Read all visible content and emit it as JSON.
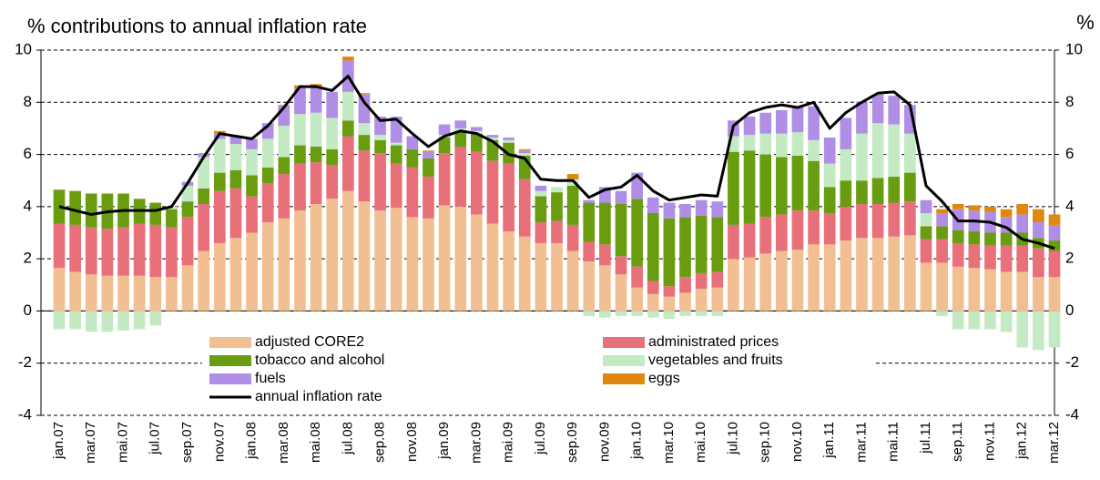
{
  "chart_data": {
    "type": "stacked_bar",
    "title": "% contributions to annual inflation rate",
    "y2_label": "%",
    "categories": [
      "jan.07",
      null,
      "mar.07",
      null,
      "mai.07",
      null,
      "jul.07",
      null,
      "sep.07",
      null,
      "nov.07",
      null,
      "jan.08",
      null,
      "mar.08",
      null,
      "mai.08",
      null,
      "jul.08",
      null,
      "sep.08",
      null,
      "nov.08",
      null,
      "jan.09",
      null,
      "mar.09",
      null,
      "mai.09",
      null,
      "jul.09",
      null,
      "sep.09",
      null,
      "nov.09",
      null,
      "jan.10",
      null,
      "mar.10",
      null,
      "mai.10",
      null,
      "jul.10",
      null,
      "sep.10",
      null,
      "nov.10",
      null,
      "jan.11",
      null,
      "mar.11",
      null,
      "mai.11",
      null,
      "jul.11",
      null,
      "sep.11",
      null,
      "nov.11",
      null,
      "jan.12",
      null,
      "mar.12"
    ],
    "series": [
      {
        "name": "adjusted CORE2",
        "color": "#f2bf93",
        "values": [
          1.65,
          1.5,
          1.4,
          1.35,
          1.35,
          1.35,
          1.3,
          1.3,
          1.75,
          2.3,
          2.6,
          2.8,
          3.0,
          3.4,
          3.55,
          3.85,
          4.1,
          4.3,
          4.6,
          4.2,
          3.85,
          3.95,
          3.6,
          3.55,
          4.05,
          4.0,
          3.7,
          3.35,
          3.05,
          2.85,
          2.6,
          2.6,
          2.3,
          1.9,
          1.75,
          1.4,
          0.9,
          0.65,
          0.55,
          0.7,
          0.85,
          0.9,
          2.0,
          2.05,
          2.2,
          2.3,
          2.35,
          2.55,
          2.55,
          2.7,
          2.8,
          2.8,
          2.85,
          2.9,
          1.85,
          1.85,
          1.7,
          1.65,
          1.6,
          1.5,
          1.5,
          1.3,
          1.3
        ]
      },
      {
        "name": "administrated prices",
        "color": "#e8707a",
        "values": [
          1.7,
          1.8,
          1.8,
          1.8,
          1.85,
          2.0,
          2.0,
          1.9,
          1.85,
          1.8,
          2.0,
          1.9,
          1.4,
          1.5,
          1.7,
          1.8,
          1.6,
          1.3,
          2.1,
          1.95,
          2.2,
          1.7,
          1.9,
          1.6,
          2.0,
          2.3,
          2.4,
          2.4,
          2.6,
          2.2,
          0.8,
          0.85,
          1.0,
          0.75,
          0.8,
          0.7,
          0.8,
          0.5,
          0.4,
          0.6,
          0.6,
          0.6,
          1.3,
          1.3,
          1.4,
          1.4,
          1.5,
          1.3,
          1.2,
          1.3,
          1.3,
          1.3,
          1.3,
          1.3,
          0.9,
          0.9,
          0.9,
          0.9,
          0.9,
          1.0,
          1.0,
          1.1,
          1.0
        ]
      },
      {
        "name": "tobacco and alcohol",
        "color": "#6a9c10",
        "values": [
          1.3,
          1.3,
          1.3,
          1.35,
          1.3,
          0.95,
          0.85,
          0.7,
          0.6,
          0.6,
          0.7,
          0.7,
          0.8,
          0.6,
          0.65,
          0.7,
          0.6,
          0.6,
          0.6,
          0.6,
          0.5,
          0.7,
          0.7,
          0.7,
          0.6,
          0.6,
          0.7,
          0.8,
          0.8,
          0.9,
          1.0,
          1.1,
          1.5,
          1.5,
          1.6,
          2.0,
          2.6,
          2.6,
          2.6,
          2.3,
          2.2,
          2.1,
          2.8,
          2.8,
          2.4,
          2.2,
          2.1,
          1.9,
          1.0,
          1.0,
          0.9,
          1.0,
          1.0,
          1.1,
          0.5,
          0.5,
          0.5,
          0.5,
          0.5,
          0.5,
          0.5,
          0.4,
          0.4
        ]
      },
      {
        "name": "vegetables and fruits",
        "color": "#c4eac4",
        "values": [
          -0.7,
          -0.7,
          -0.8,
          -0.8,
          -0.75,
          -0.7,
          -0.55,
          0.1,
          0.6,
          1.2,
          1.3,
          1.0,
          1.0,
          1.1,
          1.2,
          1.2,
          1.3,
          1.2,
          1.1,
          0.45,
          0.2,
          0.1,
          0,
          0,
          0.1,
          0.1,
          0.1,
          0.1,
          0.1,
          0.1,
          0.2,
          0.2,
          0.25,
          -0.2,
          -0.25,
          -0.2,
          -0.2,
          -0.25,
          -0.3,
          -0.2,
          -0.2,
          -0.2,
          0.6,
          0.6,
          0.8,
          0.9,
          0.9,
          0.8,
          0.9,
          1.2,
          1.8,
          2.1,
          2.0,
          1.5,
          0.5,
          -0.2,
          -0.7,
          -0.7,
          -0.7,
          -0.8,
          -1.4,
          -1.5,
          -1.4
        ]
      },
      {
        "name": "fuels",
        "color": "#b08ee6",
        "values": [
          0,
          0,
          0,
          0,
          0,
          0,
          0,
          0,
          0.15,
          0.15,
          0.2,
          0.3,
          0.4,
          0.6,
          0.8,
          1.0,
          1.0,
          1.0,
          1.2,
          1.1,
          0.7,
          1.0,
          0.5,
          0.25,
          0.4,
          0.3,
          0.15,
          0.1,
          0.1,
          0.1,
          0.2,
          0,
          0,
          0.1,
          0.6,
          0.5,
          1.0,
          0.6,
          0.6,
          0.5,
          0.6,
          0.6,
          0.6,
          0.7,
          0.8,
          0.9,
          1.0,
          1.3,
          1.0,
          1.2,
          1.2,
          1.1,
          1.1,
          1.1,
          0.5,
          0.5,
          0.8,
          0.8,
          0.8,
          0.6,
          0.7,
          0.6,
          0.6
        ]
      },
      {
        "name": "eggs",
        "color": "#e0880e",
        "values": [
          0,
          0,
          0,
          0,
          0,
          0,
          0,
          0,
          0,
          0,
          0.1,
          0,
          0,
          0,
          0,
          0.1,
          0.1,
          0,
          0.15,
          0.05,
          0,
          0,
          0,
          0.05,
          0,
          0,
          0,
          0,
          0,
          0.05,
          0,
          0,
          0.2,
          0,
          0,
          0,
          0,
          0,
          0,
          0,
          0,
          0,
          0,
          0,
          0,
          0,
          0,
          0,
          0,
          0,
          0,
          0,
          0,
          0,
          0,
          0.15,
          0.2,
          0.2,
          0.2,
          0.3,
          0.4,
          0.5,
          0.4
        ]
      },
      {
        "name": "annual inflation rate",
        "type": "line",
        "color": "#000000",
        "values": [
          4.0,
          3.85,
          3.7,
          3.8,
          3.85,
          3.85,
          3.85,
          4.0,
          4.9,
          5.9,
          6.8,
          6.7,
          6.6,
          7.1,
          7.8,
          8.6,
          8.6,
          8.45,
          9.0,
          8.0,
          7.3,
          7.35,
          6.8,
          6.3,
          6.7,
          6.9,
          6.8,
          6.5,
          6.0,
          5.85,
          5.05,
          5.0,
          5.0,
          4.35,
          4.65,
          4.75,
          5.2,
          4.6,
          4.25,
          4.35,
          4.45,
          4.4,
          7.1,
          7.6,
          7.8,
          7.9,
          7.8,
          8.0,
          7.0,
          7.6,
          8.0,
          8.35,
          8.4,
          7.9,
          4.8,
          4.2,
          3.45,
          3.45,
          3.4,
          3.2,
          2.75,
          2.6,
          2.4
        ]
      }
    ],
    "ylim": [
      -4,
      10
    ],
    "yticks": [
      -4,
      -2,
      0,
      2,
      4,
      6,
      8,
      10
    ],
    "grid": true
  }
}
